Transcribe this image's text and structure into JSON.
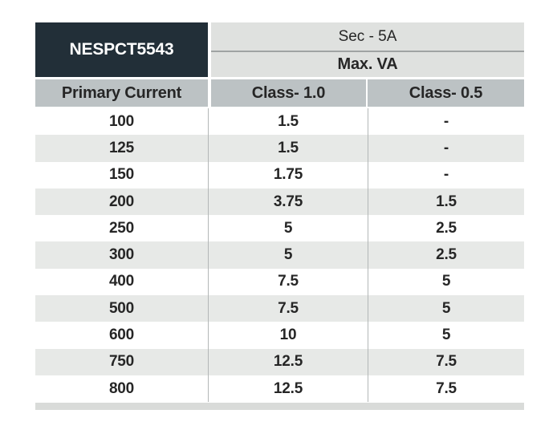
{
  "colors": {
    "dark_header_bg": "#222f38",
    "banner_bg": "#dfe1df",
    "column_header_bg": "#bcc2c4",
    "stripe_bg": "#e7e9e7",
    "bottom_strip_bg": "#d9dbd9",
    "text": "#262626"
  },
  "table": {
    "model": "NESPCT5543",
    "secondary_label": "Sec - 5A",
    "max_va_label": "Max. VA",
    "columns": [
      "Primary Current",
      "Class- 1.0",
      "Class- 0.5"
    ],
    "rows": [
      {
        "primary": "100",
        "class_1_0": "1.5",
        "class_0_5": "-"
      },
      {
        "primary": "125",
        "class_1_0": "1.5",
        "class_0_5": "-"
      },
      {
        "primary": "150",
        "class_1_0": "1.75",
        "class_0_5": "-"
      },
      {
        "primary": "200",
        "class_1_0": "3.75",
        "class_0_5": "1.5"
      },
      {
        "primary": "250",
        "class_1_0": "5",
        "class_0_5": "2.5"
      },
      {
        "primary": "300",
        "class_1_0": "5",
        "class_0_5": "2.5"
      },
      {
        "primary": "400",
        "class_1_0": "7.5",
        "class_0_5": "5"
      },
      {
        "primary": "500",
        "class_1_0": "7.5",
        "class_0_5": "5"
      },
      {
        "primary": "600",
        "class_1_0": "10",
        "class_0_5": "5"
      },
      {
        "primary": "750",
        "class_1_0": "12.5",
        "class_0_5": "7.5"
      },
      {
        "primary": "800",
        "class_1_0": "12.5",
        "class_0_5": "7.5"
      }
    ]
  },
  "chart_data": {
    "type": "table",
    "title": "NESPCT5543 Max. VA (Sec - 5A)",
    "columns": [
      "Primary Current",
      "Class- 1.0",
      "Class- 0.5"
    ],
    "rows": [
      [
        "100",
        "1.5",
        "-"
      ],
      [
        "125",
        "1.5",
        "-"
      ],
      [
        "150",
        "1.75",
        "-"
      ],
      [
        "200",
        "3.75",
        "1.5"
      ],
      [
        "250",
        "5",
        "2.5"
      ],
      [
        "300",
        "5",
        "2.5"
      ],
      [
        "400",
        "7.5",
        "5"
      ],
      [
        "500",
        "7.5",
        "5"
      ],
      [
        "600",
        "10",
        "5"
      ],
      [
        "750",
        "12.5",
        "7.5"
      ],
      [
        "800",
        "12.5",
        "7.5"
      ]
    ]
  }
}
